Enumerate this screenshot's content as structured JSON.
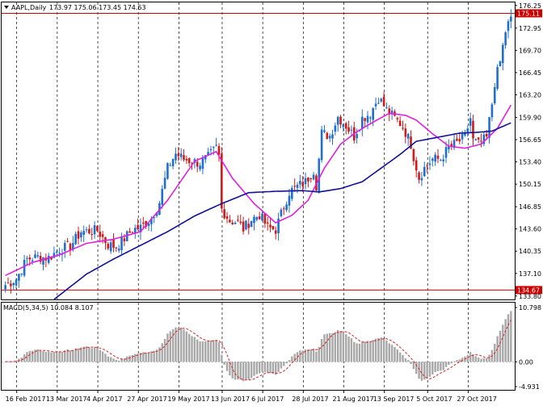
{
  "header": {
    "symbol_label": "AAPL,Daily",
    "ohlc": "173.97 175.06 173.45 174.63",
    "macd_label": "MACD(5,34,5) 10.084 8.107"
  },
  "colors": {
    "up": "#1f6fd0",
    "down": "#d11a1a",
    "ma_fast": "#e020e0",
    "ma_slow": "#10109a",
    "hist": "#a8a8a8",
    "signal": "#e02020",
    "level": "#cc0000",
    "grid": "#000000"
  },
  "chart_data": [
    {
      "type": "candlestick",
      "title": "AAPL,Daily",
      "price_ticks": [
        "176.25",
        "172.95",
        "169.70",
        "166.45",
        "163.20",
        "159.90",
        "156.65",
        "153.40",
        "150.15",
        "146.85",
        "143.60",
        "140.35",
        "137.10",
        "133.80"
      ],
      "ylim": [
        133.3,
        176.7
      ],
      "x_labels": [
        "16 Feb 2017",
        "13 Mar 2017",
        "4 Apr 2017",
        "27 Apr 2017",
        "19 May 2017",
        "13 Jun 2017",
        "6 Jul 2017",
        "28 Jul 2017",
        "21 Aug 2017",
        "13 Sep 2017",
        "5 Oct 2017",
        "27 Oct 2017"
      ],
      "levels": [
        {
          "value": 175.11,
          "label": "175.11"
        },
        {
          "value": 134.67,
          "label": "134.67"
        }
      ],
      "close_anchors": [
        [
          0,
          135.4
        ],
        [
          4,
          136.3
        ],
        [
          8,
          139.2
        ],
        [
          12,
          139.5
        ],
        [
          16,
          139.4
        ],
        [
          20,
          140.6
        ],
        [
          24,
          141.1
        ],
        [
          28,
          143.2
        ],
        [
          31,
          143.3
        ],
        [
          34,
          143.4
        ],
        [
          38,
          141.3
        ],
        [
          41,
          141.0
        ],
        [
          43,
          141.8
        ],
        [
          47,
          143.5
        ],
        [
          50,
          143.8
        ],
        [
          54,
          145.2
        ],
        [
          57,
          147.5
        ],
        [
          60,
          152.5
        ],
        [
          63,
          154.6
        ],
        [
          66,
          153.8
        ],
        [
          69,
          153.5
        ],
        [
          72,
          153.2
        ],
        [
          75,
          154.1
        ],
        [
          78,
          155.5
        ],
        [
          79,
          154.2
        ],
        [
          80,
          146.5
        ],
        [
          83,
          144.8
        ],
        [
          86,
          144.6
        ],
        [
          88,
          143.6
        ],
        [
          91,
          145.0
        ],
        [
          94,
          145.7
        ],
        [
          97,
          143.8
        ],
        [
          100,
          143.5
        ],
        [
          102,
          145.8
        ],
        [
          105,
          149.0
        ],
        [
          108,
          149.8
        ],
        [
          111,
          150.5
        ],
        [
          114,
          152.2
        ],
        [
          115,
          150.0
        ],
        [
          117,
          157.6
        ],
        [
          120,
          157.2
        ],
        [
          123,
          160.0
        ],
        [
          126,
          158.7
        ],
        [
          129,
          157.1
        ],
        [
          132,
          159.8
        ],
        [
          135,
          160.5
        ],
        [
          138,
          162.8
        ],
        [
          141,
          161.0
        ],
        [
          144,
          159.8
        ],
        [
          147,
          158.6
        ],
        [
          150,
          156.0
        ],
        [
          151,
          154.2
        ],
        [
          153,
          151.1
        ],
        [
          155,
          152.5
        ],
        [
          158,
          153.8
        ],
        [
          161,
          153.8
        ],
        [
          164,
          155.5
        ],
        [
          167,
          156.2
        ],
        [
          170,
          157.0
        ],
        [
          172,
          159.8
        ],
        [
          173,
          156.5
        ],
        [
          175,
          156.0
        ],
        [
          178,
          156.9
        ],
        [
          180,
          161.9
        ],
        [
          181,
          165.0
        ],
        [
          183,
          168.0
        ],
        [
          185,
          172.5
        ],
        [
          187,
          174.6
        ]
      ],
      "ma_fast_anchors": [
        [
          0,
          136.8
        ],
        [
          10,
          138.7
        ],
        [
          20,
          139.8
        ],
        [
          30,
          141.5
        ],
        [
          40,
          142.1
        ],
        [
          50,
          143.2
        ],
        [
          60,
          147.8
        ],
        [
          70,
          153.5
        ],
        [
          78,
          154.9
        ],
        [
          84,
          151.0
        ],
        [
          92,
          147.3
        ],
        [
          100,
          144.5
        ],
        [
          106,
          145.6
        ],
        [
          112,
          147.8
        ],
        [
          118,
          152.5
        ],
        [
          124,
          156.0
        ],
        [
          130,
          157.8
        ],
        [
          136,
          159.2
        ],
        [
          142,
          160.5
        ],
        [
          148,
          160.2
        ],
        [
          152,
          159.5
        ],
        [
          158,
          157.5
        ],
        [
          164,
          155.7
        ],
        [
          170,
          155.4
        ],
        [
          176,
          156.0
        ],
        [
          182,
          158.3
        ],
        [
          187,
          161.7
        ]
      ],
      "ma_slow_anchors": [
        [
          18,
          133.3
        ],
        [
          30,
          137.0
        ],
        [
          40,
          139.2
        ],
        [
          50,
          141.2
        ],
        [
          60,
          143.2
        ],
        [
          70,
          145.5
        ],
        [
          80,
          147.3
        ],
        [
          90,
          148.9
        ],
        [
          100,
          149.1
        ],
        [
          110,
          149.2
        ],
        [
          116,
          149.0
        ],
        [
          124,
          149.5
        ],
        [
          132,
          150.5
        ],
        [
          138,
          152.2
        ],
        [
          146,
          154.5
        ],
        [
          152,
          156.4
        ],
        [
          160,
          157.0
        ],
        [
          168,
          157.6
        ],
        [
          174,
          157.7
        ],
        [
          180,
          157.9
        ],
        [
          187,
          159.1
        ]
      ]
    },
    {
      "type": "bar",
      "title": "MACD(5,34,5)",
      "series": [
        {
          "name": "MACD",
          "values": [
            10.084
          ]
        },
        {
          "name": "Signal",
          "values": [
            8.107
          ]
        }
      ],
      "ticks": [
        "10.798",
        "0.00",
        "-4.931"
      ],
      "ylim": [
        -4.931,
        10.798
      ]
    }
  ]
}
